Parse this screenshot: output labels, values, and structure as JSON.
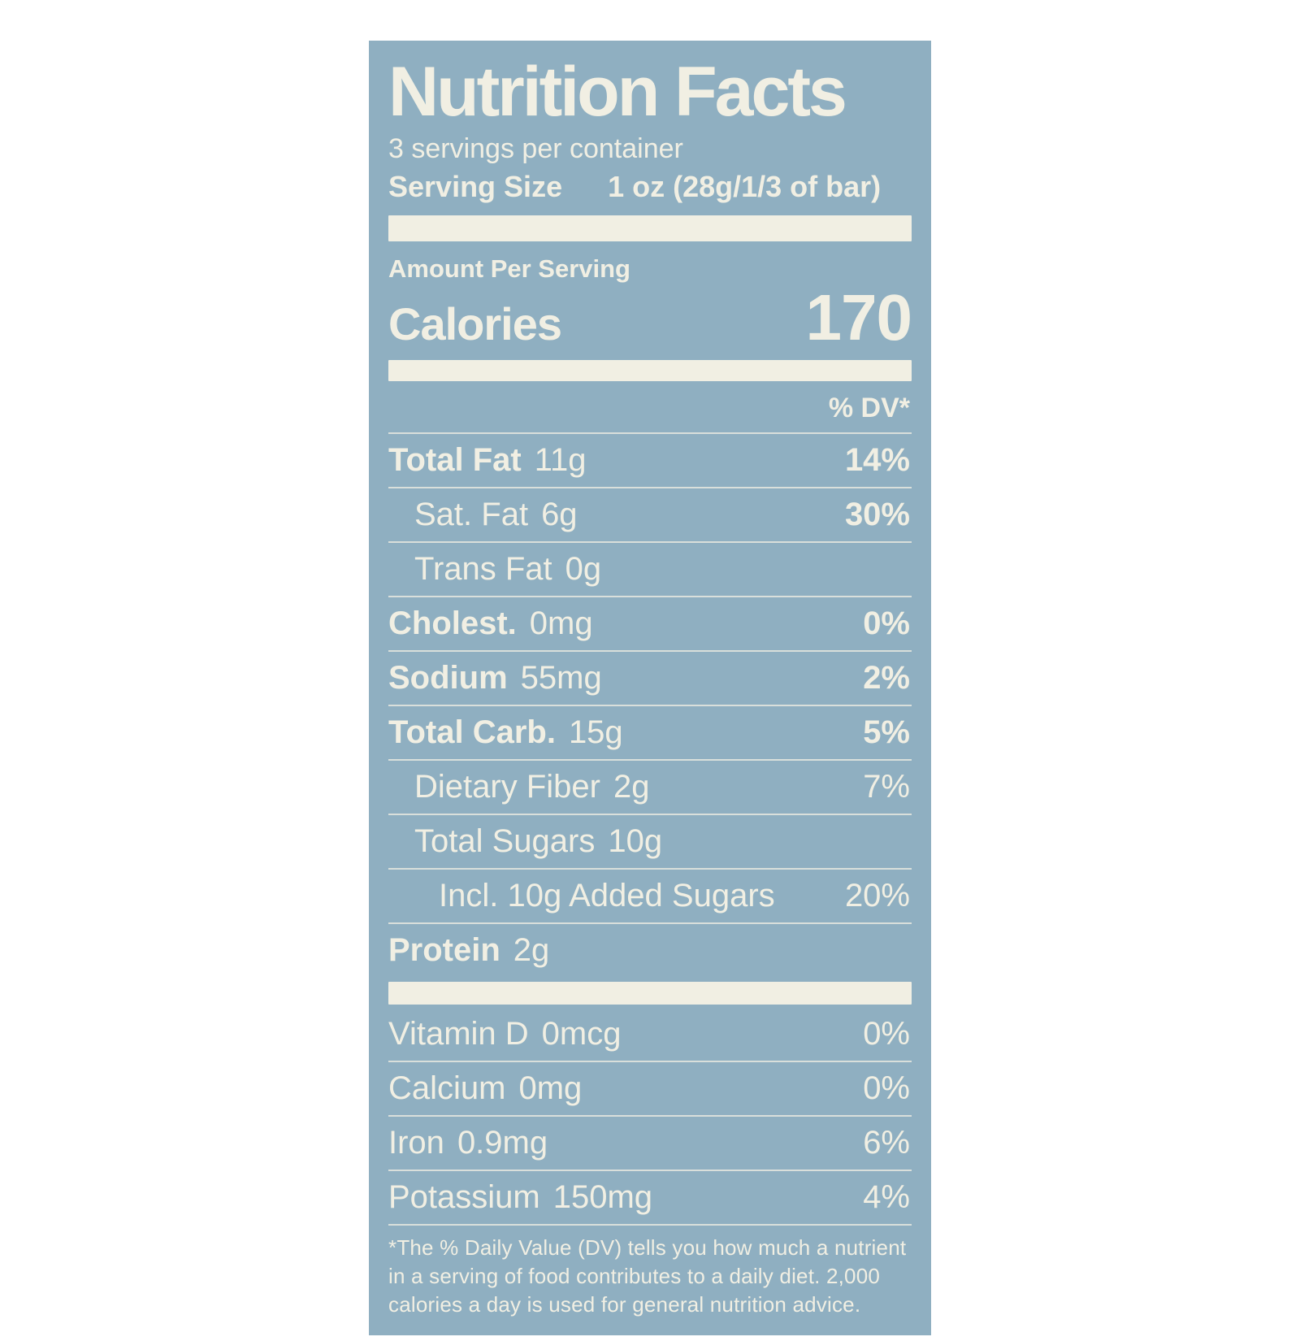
{
  "label": {
    "title": "Nutrition Facts",
    "servings_per_container": "3 servings per container",
    "serving_size_label": "Serving Size",
    "serving_size_value": "1 oz (28g/1/3 of bar)",
    "amount_per_serving": "Amount Per Serving",
    "calories_label": "Calories",
    "calories_value": "170",
    "dv_header": "% DV*",
    "rows": [
      {
        "name": "Total Fat",
        "amount": "11g",
        "dv": "14%",
        "bold": true,
        "dv_bold": true,
        "indent": 0
      },
      {
        "name": "Sat. Fat",
        "amount": "6g",
        "dv": "30%",
        "bold": false,
        "dv_bold": true,
        "indent": 1
      },
      {
        "name": "Trans Fat",
        "amount": "0g",
        "dv": "",
        "bold": false,
        "dv_bold": false,
        "indent": 1
      },
      {
        "name": "Cholest.",
        "amount": "0mg",
        "dv": "0%",
        "bold": true,
        "dv_bold": true,
        "indent": 0
      },
      {
        "name": "Sodium",
        "amount": "55mg",
        "dv": "2%",
        "bold": true,
        "dv_bold": true,
        "indent": 0
      },
      {
        "name": "Total Carb.",
        "amount": "15g",
        "dv": "5%",
        "bold": true,
        "dv_bold": true,
        "indent": 0
      },
      {
        "name": "Dietary Fiber",
        "amount": "2g",
        "dv": "7%",
        "bold": false,
        "dv_bold": false,
        "indent": 1
      },
      {
        "name": "Total Sugars",
        "amount": "10g",
        "dv": "",
        "bold": false,
        "dv_bold": false,
        "indent": 1
      },
      {
        "name": "Incl. 10g Added Sugars",
        "amount": "",
        "dv": "20%",
        "bold": false,
        "dv_bold": false,
        "indent": 2
      },
      {
        "name": "Protein",
        "amount": "2g",
        "dv": "",
        "bold": true,
        "dv_bold": false,
        "indent": 0
      }
    ],
    "vitamins": [
      {
        "name": "Vitamin D",
        "amount": "0mcg",
        "dv": "0%"
      },
      {
        "name": "Calcium",
        "amount": "0mg",
        "dv": "0%"
      },
      {
        "name": "Iron",
        "amount": "0.9mg",
        "dv": "6%"
      },
      {
        "name": "Potassium",
        "amount": "150mg",
        "dv": "4%"
      }
    ],
    "footnote": "*The % Daily Value (DV) tells you how much a nutrient in a serving of food contributes to a daily diet. 2,000 calories a day is used for general nutrition advice."
  },
  "colors": {
    "page_background": "#ffffff",
    "label_background": "#8fafc1",
    "text": "#f1efe3"
  }
}
